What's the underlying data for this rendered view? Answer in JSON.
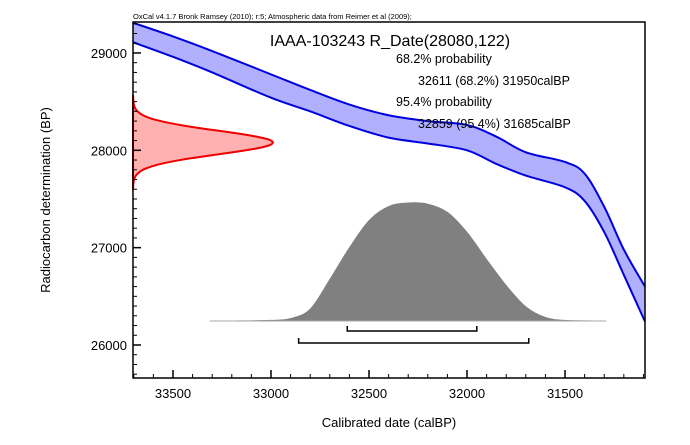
{
  "chart_data": {
    "type": "area",
    "title": "IAAA-103243 R_Date(28080,122)",
    "credit": "OxCal v4.1.7 Bronk Ramsey (2010); r:5; Atmospheric data from Reimer et al (2009);",
    "xlabel": "Calibrated date (calBP)",
    "ylabel": "Radiocarbon determination (BP)",
    "xlim": [
      33704,
      31092
    ],
    "ylim": [
      25661,
      29318
    ],
    "x_ticks": [
      33500,
      33000,
      32500,
      32000,
      31500
    ],
    "x_tick_labels": [
      "33500",
      "33000",
      "32500",
      "32000",
      "31500"
    ],
    "x_minor_step": 100,
    "y_ticks": [
      26000,
      27000,
      28000,
      29000
    ],
    "y_tick_labels": [
      "26000",
      "27000",
      "28000",
      "29000"
    ],
    "y_minor_step": 100,
    "annotations": [
      "68.2% probability",
      "32611 (68.2%) 31950calBP",
      "95.4% probability",
      "32859 (95.4%) 31685calBP"
    ],
    "radiocarbon_date": {
      "mean": 28080,
      "sigma": 122
    },
    "calibration_curve": {
      "name": "IntCal09 atmospheric",
      "color": "#0000dd",
      "fill": "#b0b0ff",
      "upper": [
        [
          33704,
          29310
        ],
        [
          33500,
          29170
        ],
        [
          33300,
          29020
        ],
        [
          33000,
          28780
        ],
        [
          32800,
          28620
        ],
        [
          32600,
          28470
        ],
        [
          32400,
          28360
        ],
        [
          32200,
          28300
        ],
        [
          32000,
          28260
        ],
        [
          31850,
          28140
        ],
        [
          31700,
          27980
        ],
        [
          31500,
          27880
        ],
        [
          31400,
          27760
        ],
        [
          31300,
          27420
        ],
        [
          31200,
          26980
        ],
        [
          31092,
          26600
        ]
      ],
      "lower": [
        [
          33704,
          29110
        ],
        [
          33500,
          28960
        ],
        [
          33300,
          28800
        ],
        [
          33000,
          28540
        ],
        [
          32800,
          28400
        ],
        [
          32600,
          28250
        ],
        [
          32400,
          28130
        ],
        [
          32200,
          28070
        ],
        [
          32000,
          28000
        ],
        [
          31850,
          27860
        ],
        [
          31700,
          27740
        ],
        [
          31500,
          27620
        ],
        [
          31400,
          27480
        ],
        [
          31300,
          27160
        ],
        [
          31200,
          26720
        ],
        [
          31092,
          26240
        ]
      ]
    },
    "calibrated_distribution": {
      "color": "#808080",
      "x_range": [
        33200,
        31300
      ],
      "points": [
        [
          33200,
          0.0
        ],
        [
          33000,
          0.005
        ],
        [
          32900,
          0.02
        ],
        [
          32800,
          0.1
        ],
        [
          32700,
          0.35
        ],
        [
          32600,
          0.62
        ],
        [
          32500,
          0.85
        ],
        [
          32400,
          0.97
        ],
        [
          32300,
          1.0
        ],
        [
          32200,
          0.99
        ],
        [
          32100,
          0.92
        ],
        [
          32000,
          0.75
        ],
        [
          31900,
          0.52
        ],
        [
          31800,
          0.3
        ],
        [
          31700,
          0.12
        ],
        [
          31600,
          0.03
        ],
        [
          31500,
          0.005
        ],
        [
          31300,
          0.0
        ]
      ]
    },
    "ranges": [
      {
        "level": "68.2%",
        "from": 32611,
        "to": 31950
      },
      {
        "level": "95.4%",
        "from": 32859,
        "to": 31685
      }
    ]
  }
}
